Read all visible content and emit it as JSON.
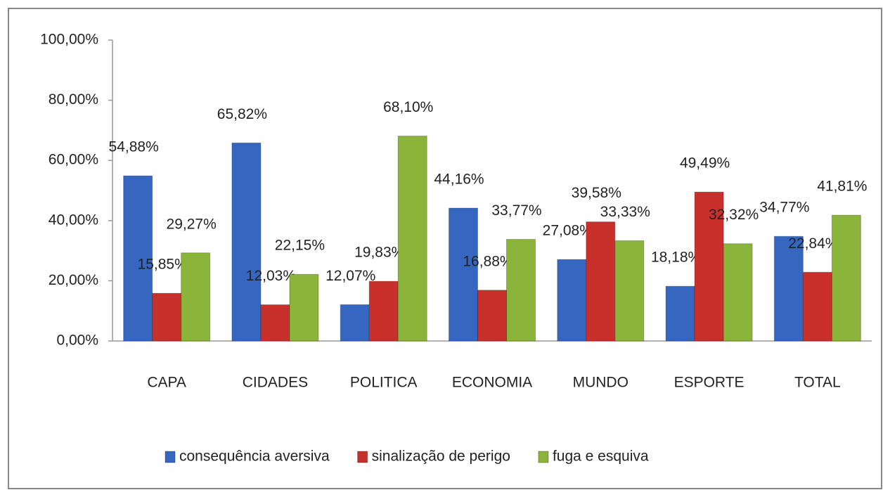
{
  "chart_data": {
    "type": "bar",
    "categories": [
      "CAPA",
      "CIDADES",
      "POLITICA",
      "ECONOMIA",
      "MUNDO",
      "ESPORTE",
      "TOTAL"
    ],
    "series": [
      {
        "name": "consequência aversiva",
        "color": "#3567c0",
        "values": [
          54.88,
          65.82,
          12.07,
          44.16,
          27.08,
          18.18,
          34.77
        ],
        "value_labels": [
          "54,88%",
          "65,82%",
          "12,07%",
          "44,16%",
          "27,08%",
          "18,18%",
          "34,77%"
        ]
      },
      {
        "name": "sinalização de perigo",
        "color": "#c8302c",
        "values": [
          15.85,
          12.03,
          19.83,
          16.88,
          39.58,
          49.49,
          22.84
        ],
        "value_labels": [
          "15,85%",
          "12,03%",
          "19,83%",
          "16,88%",
          "39,58%",
          "49,49%",
          "22,84%"
        ]
      },
      {
        "name": "fuga e esquiva",
        "color": "#8ab43a",
        "values": [
          29.27,
          22.15,
          68.1,
          33.77,
          33.33,
          32.32,
          41.81
        ],
        "value_labels": [
          "29,27%",
          "22,15%",
          "68,10%",
          "33,77%",
          "33,33%",
          "32,32%",
          "41,81%"
        ]
      }
    ],
    "ylim": [
      0,
      100
    ],
    "yticks": [
      {
        "value": 0,
        "label": "0,00%"
      },
      {
        "value": 20,
        "label": "20,00%"
      },
      {
        "value": 40,
        "label": "40,00%"
      },
      {
        "value": 60,
        "label": "60,00%"
      },
      {
        "value": 80,
        "label": "80,00%"
      },
      {
        "value": 100,
        "label": "100,00%"
      }
    ],
    "grid": false,
    "legend": "bottom"
  }
}
